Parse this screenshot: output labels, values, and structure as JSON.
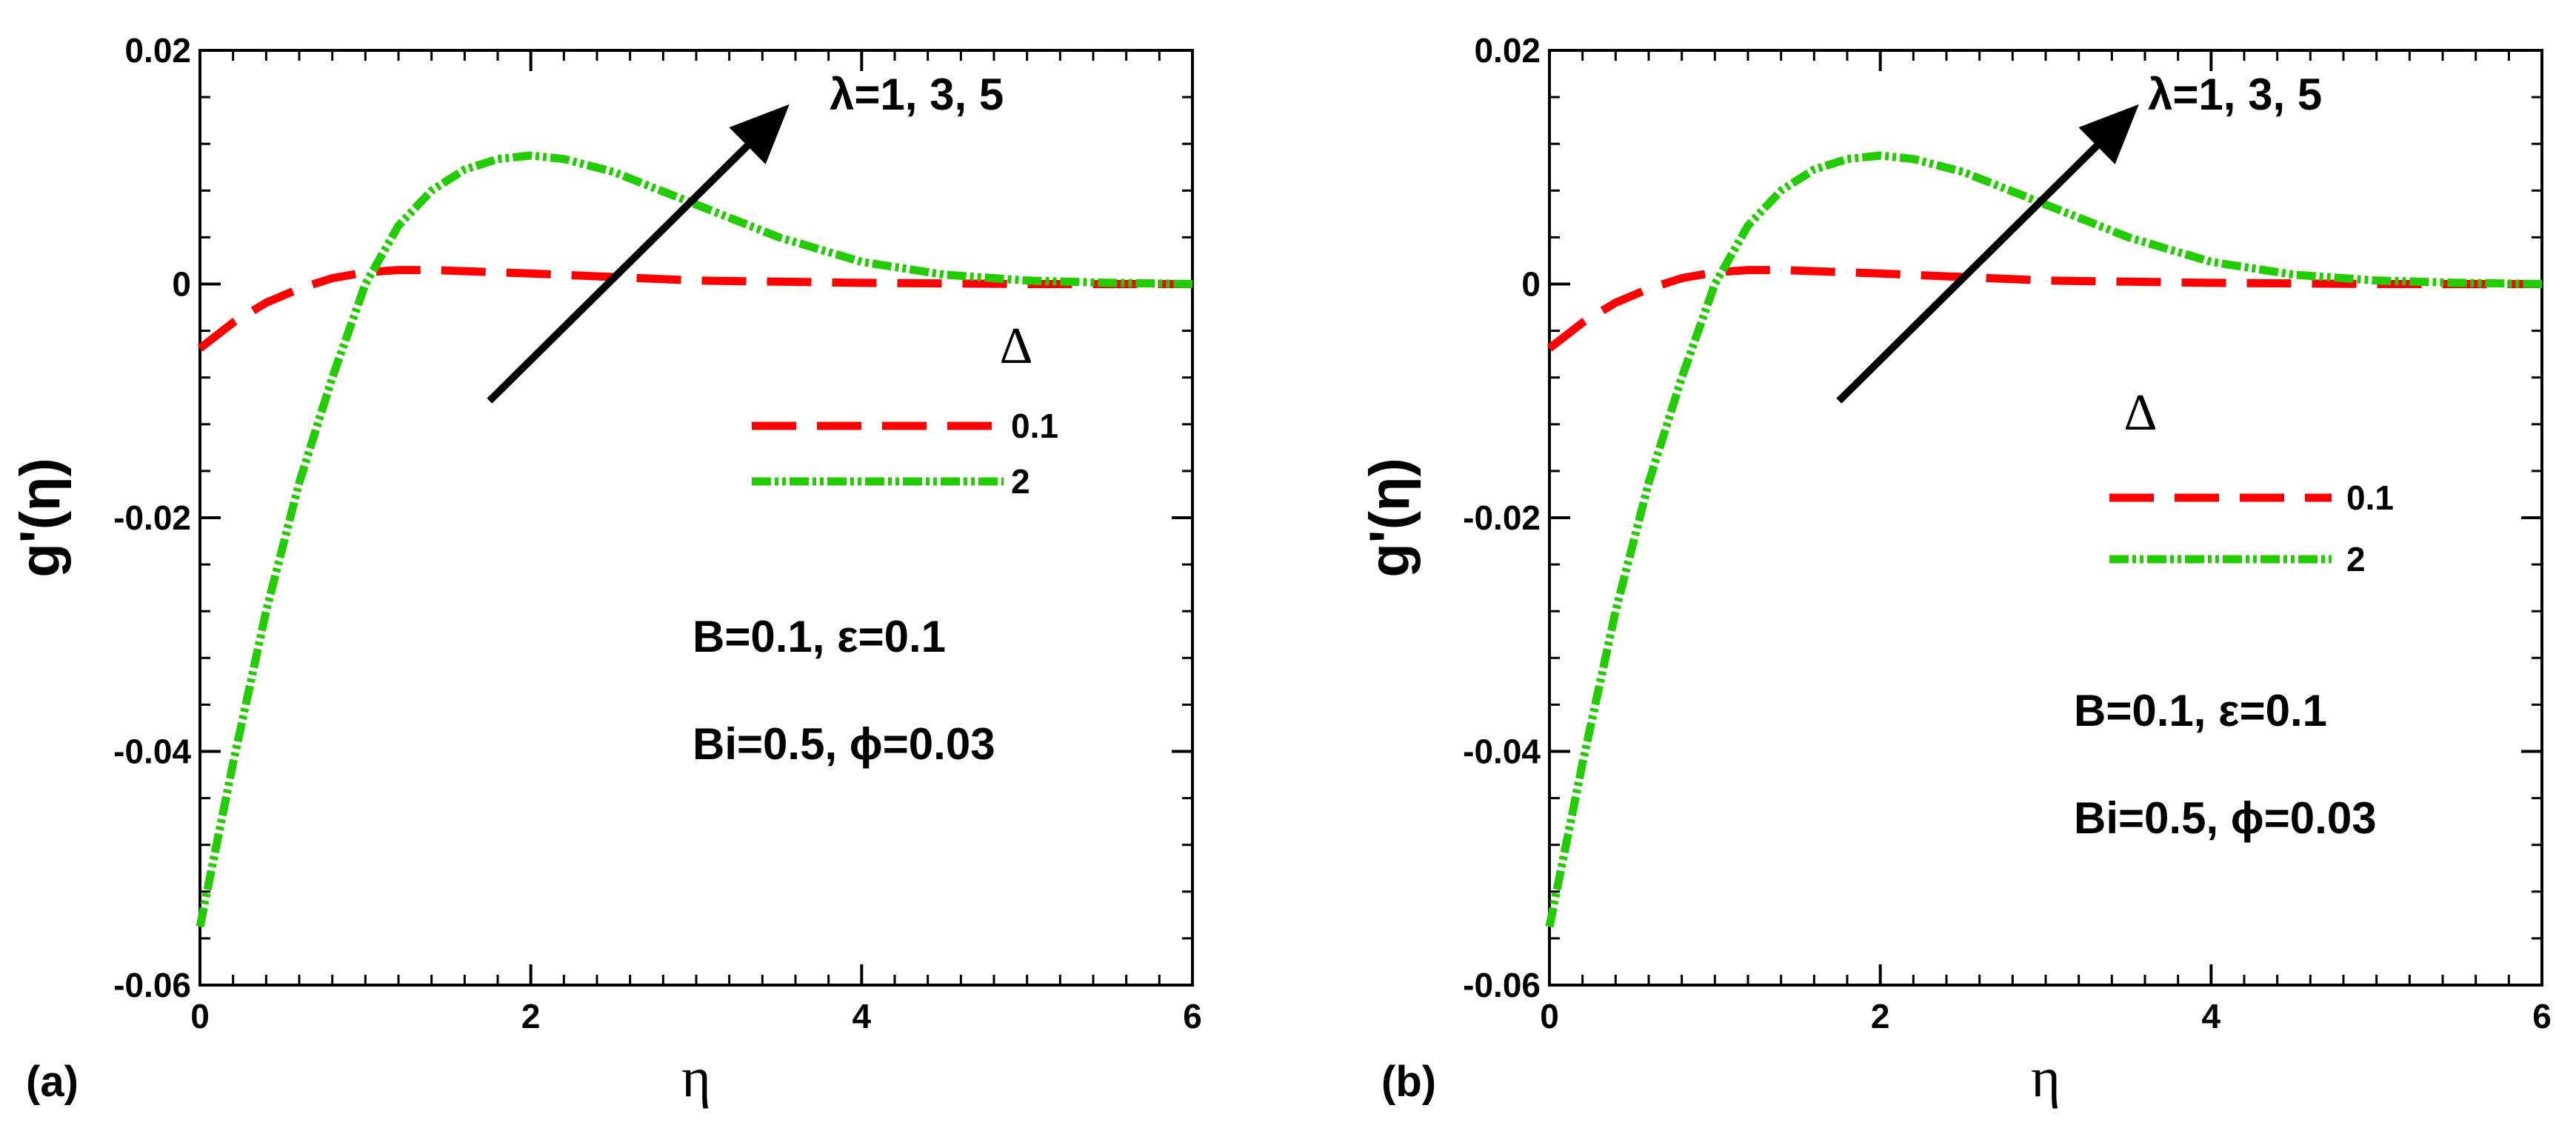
{
  "chart_data": [
    {
      "type": "line",
      "panel_label": "(a)",
      "xlabel": "η",
      "ylabel": "g'(η)",
      "xlim": [
        0,
        6
      ],
      "ylim": [
        -0.06,
        0.02
      ],
      "x_ticks": [
        0,
        2,
        4,
        6
      ],
      "x_tick_labels": [
        "0",
        "2",
        "4",
        "6"
      ],
      "y_ticks": [
        -0.06,
        -0.04,
        -0.02,
        0,
        0.02
      ],
      "y_tick_labels": [
        "-0.06",
        "-0.04",
        "-0.02",
        "0",
        "0.02"
      ],
      "legend_title": "Δ",
      "legend_position": "center-right",
      "arrow_label": "λ=1, 3, 5",
      "arrow": {
        "from": [
          1.75,
          -0.01
        ],
        "to": [
          3.5,
          0.0145
        ]
      },
      "annotations": [
        "B=0.1, ε=0.1",
        "Bi=0.5, ϕ=0.03"
      ],
      "series": [
        {
          "name": "0.1",
          "color": "#ff0000",
          "style": "dashed",
          "x": [
            0,
            0.2,
            0.4,
            0.6,
            0.8,
            1.0,
            1.2,
            1.4,
            1.6,
            1.8,
            2.0,
            2.5,
            3.0,
            3.5,
            4.0,
            5.0,
            6.0
          ],
          "y": [
            -0.0055,
            -0.0033,
            -0.0016,
            -0.0004,
            0.0005,
            0.001,
            0.0012,
            0.0012,
            0.0011,
            0.001,
            0.0009,
            0.0006,
            0.0003,
            0.0002,
            0.0001,
            0.0,
            0.0
          ]
        },
        {
          "name": "2",
          "color": "#22cc00",
          "style": "dash-dot-dot",
          "x": [
            0,
            0.2,
            0.4,
            0.6,
            0.8,
            1.0,
            1.2,
            1.4,
            1.6,
            1.8,
            2.0,
            2.2,
            2.5,
            3.0,
            3.5,
            4.0,
            4.5,
            5.0,
            5.5,
            6.0
          ],
          "y": [
            -0.055,
            -0.041,
            -0.028,
            -0.017,
            -0.008,
            0.0,
            0.005,
            0.008,
            0.0098,
            0.0107,
            0.011,
            0.0107,
            0.0096,
            0.0068,
            0.004,
            0.0019,
            0.0008,
            0.0003,
            0.0001,
            0.0
          ]
        }
      ]
    },
    {
      "type": "line",
      "panel_label": "(b)",
      "xlabel": "η",
      "ylabel": "g'(η)",
      "xlim": [
        0,
        6
      ],
      "ylim": [
        -0.06,
        0.02
      ],
      "x_ticks": [
        0,
        2,
        4,
        6
      ],
      "x_tick_labels": [
        "0",
        "2",
        "4",
        "6"
      ],
      "y_ticks": [
        -0.06,
        -0.04,
        -0.02,
        0,
        0.02
      ],
      "y_tick_labels": [
        "-0.06",
        "-0.04",
        "-0.02",
        "0",
        "0.02"
      ],
      "legend_title": "Δ",
      "legend_position": "center-right",
      "arrow_label": "λ=1, 3, 5",
      "arrow": {
        "from": [
          1.75,
          -0.01
        ],
        "to": [
          3.5,
          0.0145
        ]
      },
      "annotations": [
        "B=0.1, ε=0.1",
        "Bi=0.5, ϕ=0.03"
      ],
      "series": [
        {
          "name": "0.1",
          "color": "#ff0000",
          "style": "dashed",
          "x": [
            0,
            0.2,
            0.4,
            0.6,
            0.8,
            1.0,
            1.2,
            1.4,
            1.6,
            1.8,
            2.0,
            2.5,
            3.0,
            3.5,
            4.0,
            5.0,
            6.0
          ],
          "y": [
            -0.0055,
            -0.0033,
            -0.0016,
            -0.0004,
            0.0005,
            0.001,
            0.0012,
            0.0012,
            0.0011,
            0.001,
            0.0009,
            0.0006,
            0.0003,
            0.0002,
            0.0001,
            0.0,
            0.0
          ]
        },
        {
          "name": "2",
          "color": "#22cc00",
          "style": "dash-dot-dot",
          "x": [
            0,
            0.2,
            0.4,
            0.6,
            0.8,
            1.0,
            1.2,
            1.4,
            1.6,
            1.8,
            2.0,
            2.2,
            2.5,
            3.0,
            3.5,
            4.0,
            4.5,
            5.0,
            5.5,
            6.0
          ],
          "y": [
            -0.055,
            -0.041,
            -0.028,
            -0.017,
            -0.008,
            0.0,
            0.005,
            0.008,
            0.0098,
            0.0107,
            0.011,
            0.0107,
            0.0096,
            0.0068,
            0.004,
            0.0019,
            0.0008,
            0.0003,
            0.0001,
            0.0
          ]
        }
      ]
    }
  ]
}
